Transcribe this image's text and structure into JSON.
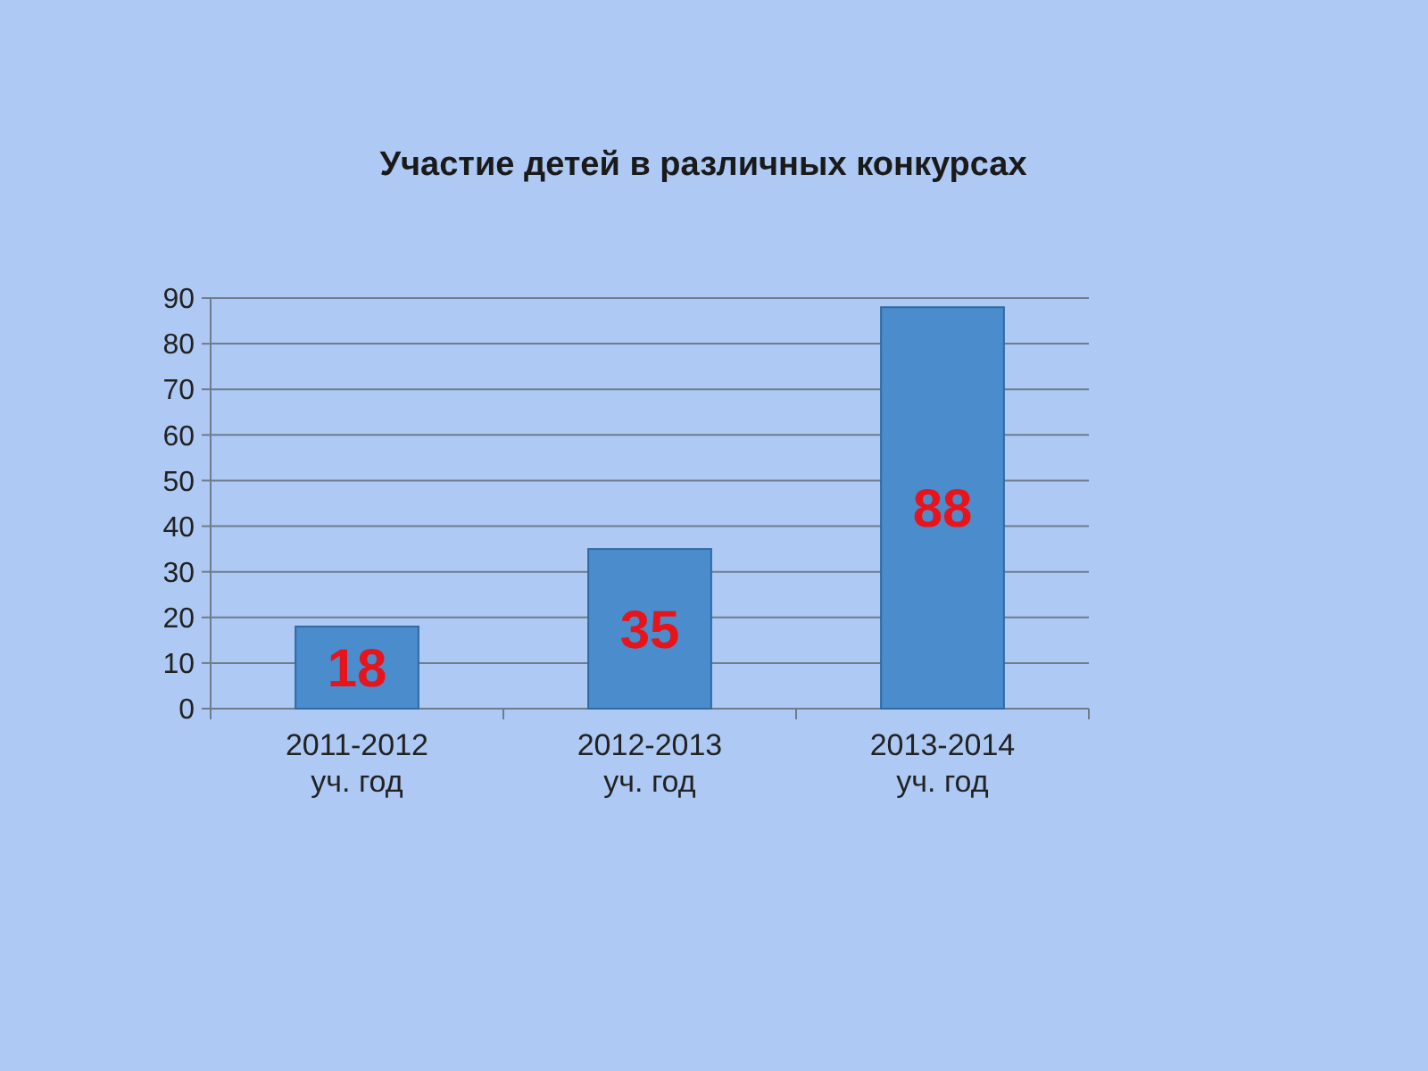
{
  "chart_data": {
    "type": "bar",
    "title": "Участие детей в различных конкурсах",
    "categories": [
      "2011-2012\nуч. год",
      "2012-2013\nуч. год",
      "2013-2014\nуч. год"
    ],
    "values": [
      18,
      35,
      88
    ],
    "color": "#4a8ccc",
    "ylim": [
      0,
      90
    ],
    "yticks": [
      0,
      10,
      20,
      30,
      40,
      50,
      60,
      70,
      80,
      90
    ],
    "grid": "y",
    "data_labels": true
  }
}
